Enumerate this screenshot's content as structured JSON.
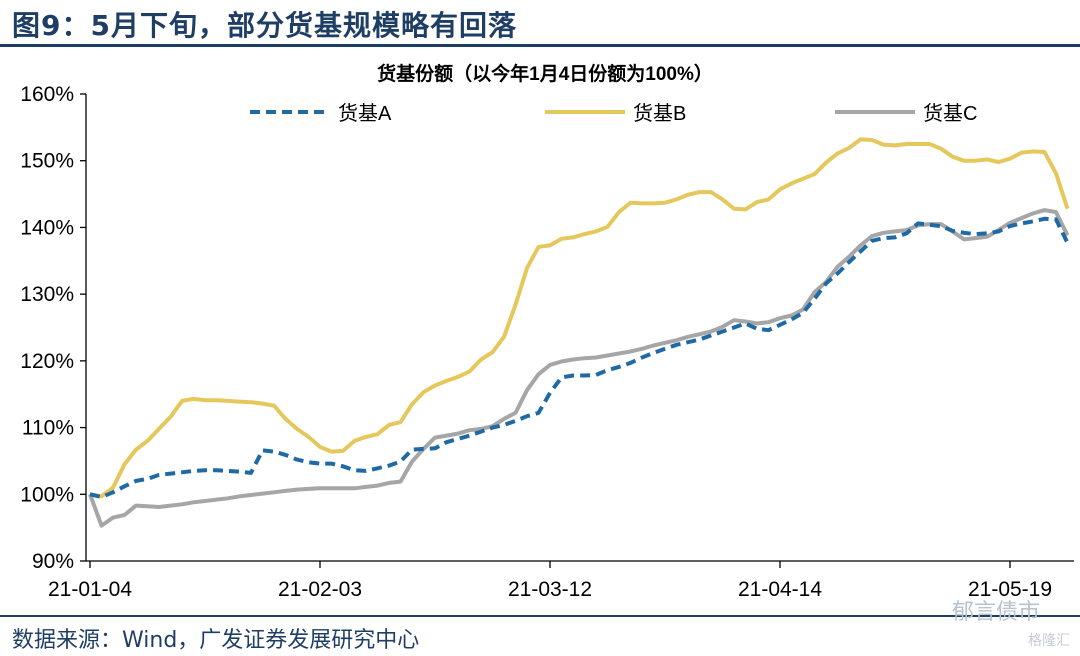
{
  "figure": {
    "title": "图9：5月下旬，部分货基规模略有回落",
    "source": "数据来源：Wind，广发证券发展研究中心",
    "watermark": "郁言债市",
    "watermark2": "格隆汇"
  },
  "chart_data": {
    "type": "line",
    "title": "货基份额（以今年1月4日份额为100%）",
    "x_tick_labels": [
      "21-01-04",
      "21-02-03",
      "21-03-12",
      "21-04-14",
      "21-05-19"
    ],
    "x_tick_index": [
      0,
      20,
      40,
      60,
      80
    ],
    "y_tick_labels": [
      "90%",
      "100%",
      "110%",
      "120%",
      "130%",
      "140%",
      "150%",
      "160%"
    ],
    "ylim": [
      90,
      160
    ],
    "ytick_step": 10,
    "legend_position": "top",
    "n_points": 86,
    "series": [
      {
        "name": "货基A",
        "color": "#1f6aa5",
        "dash": "dashed",
        "values": [
          100.0,
          99.6,
          100.3,
          101.2,
          102.0,
          102.3,
          102.9,
          103.1,
          103.3,
          103.5,
          103.6,
          103.6,
          103.5,
          103.4,
          103.2,
          106.6,
          106.4,
          105.9,
          105.2,
          104.8,
          104.6,
          104.6,
          104.2,
          103.6,
          103.5,
          103.9,
          104.3,
          104.9,
          106.7,
          106.8,
          106.9,
          107.8,
          108.3,
          108.8,
          109.4,
          110.0,
          110.4,
          111.0,
          111.7,
          112.2,
          115.2,
          117.5,
          117.8,
          117.8,
          117.9,
          118.6,
          119.1,
          119.7,
          120.5,
          121.2,
          121.8,
          122.4,
          122.8,
          123.2,
          123.8,
          124.4,
          125.0,
          125.6,
          124.8,
          124.6,
          125.4,
          126.2,
          127.2,
          129.3,
          131.6,
          133.1,
          134.8,
          136.4,
          138.0,
          138.4,
          138.5,
          139.1,
          140.6,
          140.4,
          140.2,
          139.5,
          139.2,
          139.0,
          139.1,
          139.4,
          140.2,
          140.6,
          140.9,
          141.3,
          141.2,
          137.7
        ]
      },
      {
        "name": "货基B",
        "color": "#e6c75c",
        "dash": "solid",
        "values": [
          100.0,
          99.7,
          101.0,
          104.5,
          106.7,
          108.0,
          109.8,
          111.6,
          114.0,
          114.3,
          114.1,
          114.1,
          114.0,
          113.9,
          113.8,
          113.6,
          113.3,
          111.3,
          109.8,
          108.6,
          107.1,
          106.4,
          106.5,
          108.0,
          108.6,
          109.0,
          110.4,
          110.8,
          113.5,
          115.3,
          116.3,
          117.0,
          117.6,
          118.4,
          120.2,
          121.3,
          123.6,
          128.4,
          133.9,
          137.1,
          137.3,
          138.3,
          138.5,
          139.0,
          139.4,
          140.1,
          142.3,
          143.7,
          143.6,
          143.6,
          143.7,
          144.2,
          144.9,
          145.3,
          145.3,
          144.2,
          142.8,
          142.7,
          143.8,
          144.2,
          145.7,
          146.6,
          147.3,
          148.0,
          149.7,
          151.1,
          151.9,
          153.2,
          153.1,
          152.4,
          152.3,
          152.5,
          152.5,
          152.5,
          151.8,
          150.6,
          150.0,
          150.0,
          150.2,
          149.8,
          150.3,
          151.2,
          151.4,
          151.3,
          148.1,
          142.8
        ]
      },
      {
        "name": "货基C",
        "color": "#a6a6a6",
        "dash": "solid",
        "values": [
          100.0,
          95.3,
          96.5,
          96.9,
          98.3,
          98.2,
          98.1,
          98.3,
          98.5,
          98.8,
          99.0,
          99.2,
          99.4,
          99.7,
          99.9,
          100.1,
          100.3,
          100.5,
          100.7,
          100.8,
          100.9,
          100.9,
          100.9,
          100.9,
          101.1,
          101.3,
          101.7,
          101.9,
          104.9,
          106.8,
          108.5,
          108.8,
          109.1,
          109.6,
          109.8,
          110.2,
          111.3,
          112.2,
          115.6,
          118.0,
          119.4,
          119.9,
          120.2,
          120.4,
          120.5,
          120.8,
          121.1,
          121.4,
          121.8,
          122.3,
          122.7,
          123.1,
          123.6,
          124.0,
          124.4,
          125.1,
          126.1,
          125.9,
          125.6,
          125.8,
          126.4,
          126.8,
          127.7,
          130.3,
          131.8,
          134.1,
          135.6,
          137.3,
          138.7,
          139.2,
          139.4,
          139.6,
          140.3,
          140.5,
          140.5,
          139.4,
          138.2,
          138.4,
          138.6,
          139.6,
          140.7,
          141.4,
          142.1,
          142.6,
          142.3,
          138.8
        ]
      }
    ]
  }
}
